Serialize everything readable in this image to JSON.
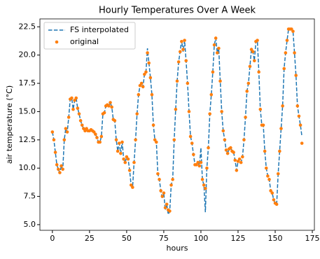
{
  "chart_data": {
    "type": "line",
    "title": "Hourly Temperatures Over A Week",
    "xlabel": "hours",
    "ylabel": "air temperature (°C)",
    "x": [
      0,
      1,
      2,
      3,
      4,
      5,
      6,
      7,
      8,
      9,
      10,
      11,
      12,
      13,
      14,
      15,
      16,
      17,
      18,
      19,
      20,
      21,
      22,
      23,
      24,
      25,
      26,
      27,
      28,
      29,
      30,
      31,
      32,
      33,
      34,
      35,
      36,
      37,
      38,
      39,
      40,
      41,
      42,
      43,
      44,
      45,
      46,
      47,
      48,
      49,
      50,
      51,
      52,
      53,
      54,
      55,
      56,
      57,
      58,
      59,
      60,
      61,
      62,
      63,
      64,
      65,
      66,
      67,
      68,
      69,
      70,
      71,
      72,
      73,
      74,
      75,
      76,
      77,
      78,
      79,
      80,
      81,
      82,
      83,
      84,
      85,
      86,
      87,
      88,
      89,
      90,
      91,
      92,
      93,
      94,
      95,
      96,
      97,
      98,
      99,
      100,
      101,
      102,
      103,
      104,
      105,
      106,
      107,
      108,
      109,
      110,
      111,
      112,
      113,
      114,
      115,
      116,
      117,
      118,
      119,
      120,
      121,
      122,
      123,
      124,
      125,
      126,
      127,
      128,
      129,
      130,
      131,
      132,
      133,
      134,
      135,
      136,
      137,
      138,
      139,
      140,
      141,
      142,
      143,
      144,
      145,
      146,
      147,
      148,
      149,
      150,
      151,
      152,
      153,
      154,
      155,
      156,
      157,
      158,
      159,
      160,
      161,
      162,
      163,
      164,
      165,
      166,
      167,
      168
    ],
    "series": [
      {
        "name": "FS interpolated",
        "type": "line",
        "color": "#1f77b4",
        "dashed": true,
        "values": [
          13.2,
          12.5,
          11.4,
          10.3,
          9.9,
          9.6,
          10.2,
          9.9,
          12.5,
          13.5,
          13.2,
          14.5,
          16.1,
          16.2,
          15.2,
          16.0,
          16.2,
          15.3,
          14.8,
          14.2,
          13.8,
          13.5,
          13.3,
          13.5,
          13.3,
          13.3,
          13.4,
          13.3,
          13.2,
          13.0,
          12.7,
          12.3,
          12.3,
          12.8,
          14.8,
          14.9,
          15.5,
          15.6,
          15.5,
          15.8,
          15.4,
          14.3,
          14.2,
          12.5,
          11.5,
          12.2,
          11.3,
          12.3,
          10.8,
          10.5,
          11.0,
          10.8,
          9.8,
          8.5,
          8.3,
          10.5,
          12.5,
          14.8,
          16.5,
          17.3,
          17.5,
          17.2,
          18.3,
          18.5,
          20.6,
          19.3,
          18.0,
          16.5,
          13.8,
          12.5,
          12.3,
          9.5,
          9.0,
          8.0,
          7.3,
          7.8,
          6.3,
          6.8,
          5.9,
          6.2,
          8.5,
          9.0,
          12.5,
          15.2,
          17.7,
          19.4,
          20.3,
          21.3,
          20.3,
          21.3,
          19.5,
          17.5,
          15.0,
          12.8,
          12.2,
          11.2,
          10.3,
          10.3,
          10.5,
          10.2,
          11.8,
          9.0,
          8.5,
          6.1,
          10.0,
          11.8,
          14.8,
          16.5,
          18.5,
          20.9,
          21.5,
          20.2,
          20.6,
          17.7,
          15.0,
          13.3,
          12.5,
          11.6,
          11.3,
          11.7,
          11.8,
          11.5,
          11.4,
          10.7,
          9.8,
          10.6,
          10.8,
          10.5,
          11.0,
          12.5,
          14.5,
          16.8,
          17.5,
          19.0,
          20.5,
          20.3,
          19.5,
          21.2,
          21.3,
          18.5,
          15.2,
          13.8,
          13.8,
          11.5,
          10.0,
          9.3,
          9.0,
          8.0,
          7.8,
          7.2,
          6.9,
          6.8,
          9.5,
          11.5,
          13.5,
          15.5,
          18.8,
          20.2,
          21.3,
          22.3,
          22.3,
          22.3,
          22.1,
          20.2,
          18.2,
          15.5,
          14.6,
          13.8,
          12.8
        ]
      },
      {
        "name": "original",
        "type": "scatter",
        "color": "#ff7f0e",
        "values": [
          13.2,
          12.5,
          11.4,
          10.3,
          9.9,
          9.6,
          10.2,
          9.9,
          12.5,
          13.5,
          13.2,
          14.5,
          16.1,
          16.2,
          15.2,
          16.0,
          16.2,
          15.3,
          14.8,
          14.2,
          13.8,
          13.5,
          13.3,
          13.5,
          13.3,
          13.3,
          13.4,
          13.3,
          13.2,
          13.0,
          12.7,
          12.3,
          12.3,
          12.8,
          14.8,
          14.9,
          15.5,
          15.6,
          15.5,
          15.8,
          15.4,
          14.3,
          14.2,
          12.5,
          11.5,
          12.2,
          11.3,
          12.3,
          10.8,
          10.5,
          11.0,
          10.8,
          9.8,
          8.5,
          8.3,
          10.5,
          12.5,
          14.8,
          16.5,
          17.3,
          17.5,
          17.2,
          18.3,
          18.5,
          20.2,
          19.3,
          18.0,
          16.5,
          13.8,
          12.5,
          12.3,
          9.5,
          9.0,
          8.0,
          7.5,
          7.8,
          6.5,
          6.8,
          6.3,
          6.2,
          8.5,
          9.0,
          12.5,
          15.2,
          17.7,
          19.4,
          20.3,
          21.2,
          20.5,
          21.3,
          19.5,
          17.5,
          15.0,
          12.8,
          12.2,
          11.2,
          10.3,
          10.3,
          10.5,
          10.2,
          10.5,
          9.0,
          8.5,
          8.2,
          10.0,
          11.8,
          14.8,
          16.5,
          18.5,
          20.9,
          21.5,
          20.2,
          20.6,
          17.7,
          15.0,
          13.3,
          12.5,
          11.6,
          11.3,
          11.7,
          11.8,
          11.5,
          11.4,
          10.7,
          9.8,
          10.6,
          10.8,
          10.5,
          11.0,
          12.5,
          14.5,
          16.8,
          17.5,
          19.0,
          20.5,
          20.3,
          19.5,
          21.2,
          21.3,
          18.5,
          15.2,
          13.8,
          13.8,
          11.5,
          10.0,
          9.3,
          9.0,
          8.0,
          7.8,
          7.2,
          6.9,
          6.8,
          9.5,
          11.5,
          13.5,
          15.5,
          18.8,
          20.2,
          21.3,
          22.3,
          22.3,
          22.3,
          22.1,
          20.2,
          18.2,
          15.5,
          14.6,
          13.8,
          12.2
        ]
      }
    ],
    "xlim": [
      -8.4,
      176.4
    ],
    "xticks": [
      0,
      25,
      50,
      75,
      100,
      125,
      150,
      175
    ],
    "ylim": [
      4.5,
      23.2
    ],
    "yticks": [
      {
        "value": 5,
        "label": "5.0"
      },
      7.5,
      {
        "value": 10,
        "label": "10.0"
      },
      12.5,
      {
        "value": 15,
        "label": "15.0"
      },
      17.5,
      {
        "value": 20,
        "label": "20.0"
      },
      22.5
    ],
    "legend": "upper left"
  }
}
